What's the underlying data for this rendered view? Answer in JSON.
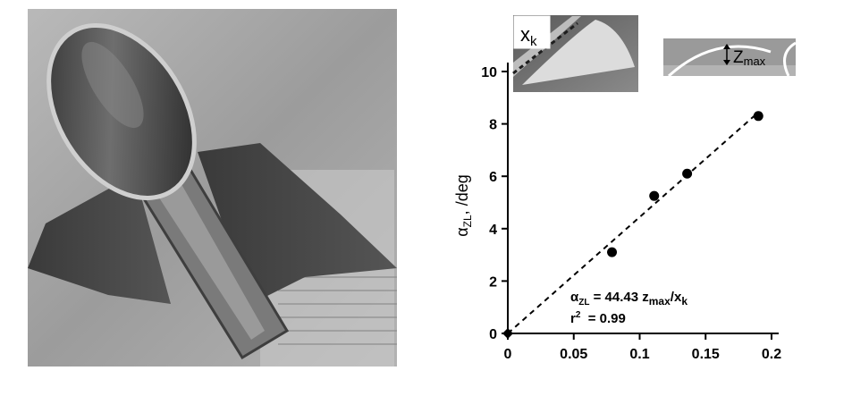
{
  "chart_data": {
    "type": "scatter",
    "ylabel_main": "α",
    "ylabel_sub": "ZL",
    "ylabel_rest": ", /deg",
    "xlim": [
      0,
      0.2
    ],
    "ylim": [
      0,
      10
    ],
    "x_ticks": [
      0,
      0.05,
      0.1,
      0.15,
      0.2
    ],
    "x_tick_labels": [
      "0",
      "0.05",
      "0.1",
      "0.15",
      "0.2"
    ],
    "y_ticks": [
      0,
      2,
      4,
      6,
      8,
      10
    ],
    "y_tick_labels": [
      "0",
      "2",
      "4",
      "6",
      "8",
      "10"
    ],
    "points": [
      {
        "x": 0.079,
        "y": 3.1
      },
      {
        "x": 0.111,
        "y": 5.25
      },
      {
        "x": 0.136,
        "y": 6.1
      },
      {
        "x": 0.19,
        "y": 8.3
      }
    ],
    "fit_line": {
      "slope": 44.43,
      "style": "dashed",
      "x_range": [
        0,
        0.19
      ]
    },
    "equation": {
      "a": "α",
      "a_sub": "ZL",
      "eq": " = 44.43 z",
      "z_sub": "max",
      "slash": "/x",
      "x_sub": "k"
    },
    "r2": {
      "r": "r",
      "sup": "2",
      "value": "  = 0.99"
    },
    "grid": false
  },
  "insets": {
    "left": {
      "label": "x",
      "label_sub": "k"
    },
    "right": {
      "label": "Z",
      "label_sub": "max"
    }
  },
  "colors": {
    "axis": "#000000",
    "marker": "#000000",
    "inset_bg": "#9a9a9a"
  }
}
